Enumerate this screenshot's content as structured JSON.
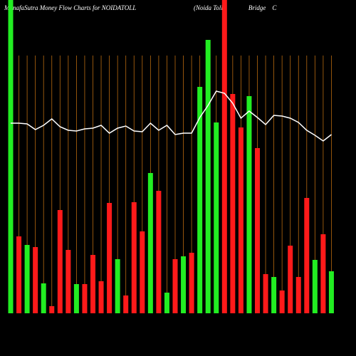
{
  "chart_data": {
    "type": "bar",
    "title": "MunafaSutra  Money Flow  Charts for  NOIDATOLL",
    "subtitle": "(Noida Toll                Bridge    C",
    "values": [
      440,
      108,
      96,
      93,
      42,
      10,
      145,
      89,
      41,
      41,
      82,
      45,
      155,
      76,
      25,
      156,
      115,
      197,
      172,
      29,
      76,
      80,
      85,
      318,
      384,
      268,
      440,
      308,
      261,
      305,
      232,
      55,
      51,
      32,
      95,
      51,
      162,
      75,
      111,
      59
    ],
    "bar_colors": [
      "#22ee22",
      "#ff1a1a",
      "#22ee22",
      "#ff1a1a",
      "#22ee22",
      "#ff1a1a",
      "#ff1a1a",
      "#ff1a1a",
      "#22ee22",
      "#ff1a1a",
      "#ff1a1a",
      "#ff1a1a",
      "#ff1a1a",
      "#22ee22",
      "#ff1a1a",
      "#ff1a1a",
      "#ff1a1a",
      "#22ee22",
      "#ff1a1a",
      "#22ee22",
      "#ff1a1a",
      "#22ee22",
      "#ff1a1a",
      "#22ee22",
      "#22ee22",
      "#22ee22",
      "#ff1a1a",
      "#ff1a1a",
      "#ff1a1a",
      "#22ee22",
      "#ff1a1a",
      "#ff1a1a",
      "#22ee22",
      "#ff1a1a",
      "#ff1a1a",
      "#ff1a1a",
      "#ff1a1a",
      "#22ee22",
      "#ff1a1a",
      "#22ee22"
    ],
    "line_values": [
      267,
      267,
      266,
      258,
      264,
      273,
      262,
      257,
      256,
      259,
      260,
      264,
      253,
      260,
      263,
      256,
      255,
      267,
      257,
      264,
      251,
      253,
      253,
      275,
      292,
      312,
      309,
      295,
      274,
      284,
      275,
      265,
      278,
      277,
      274,
      268,
      257,
      250,
      242,
      251
    ],
    "line_color": "#ffffff",
    "grid_color": "#b86a10",
    "ylim": [
      0,
      440
    ]
  }
}
